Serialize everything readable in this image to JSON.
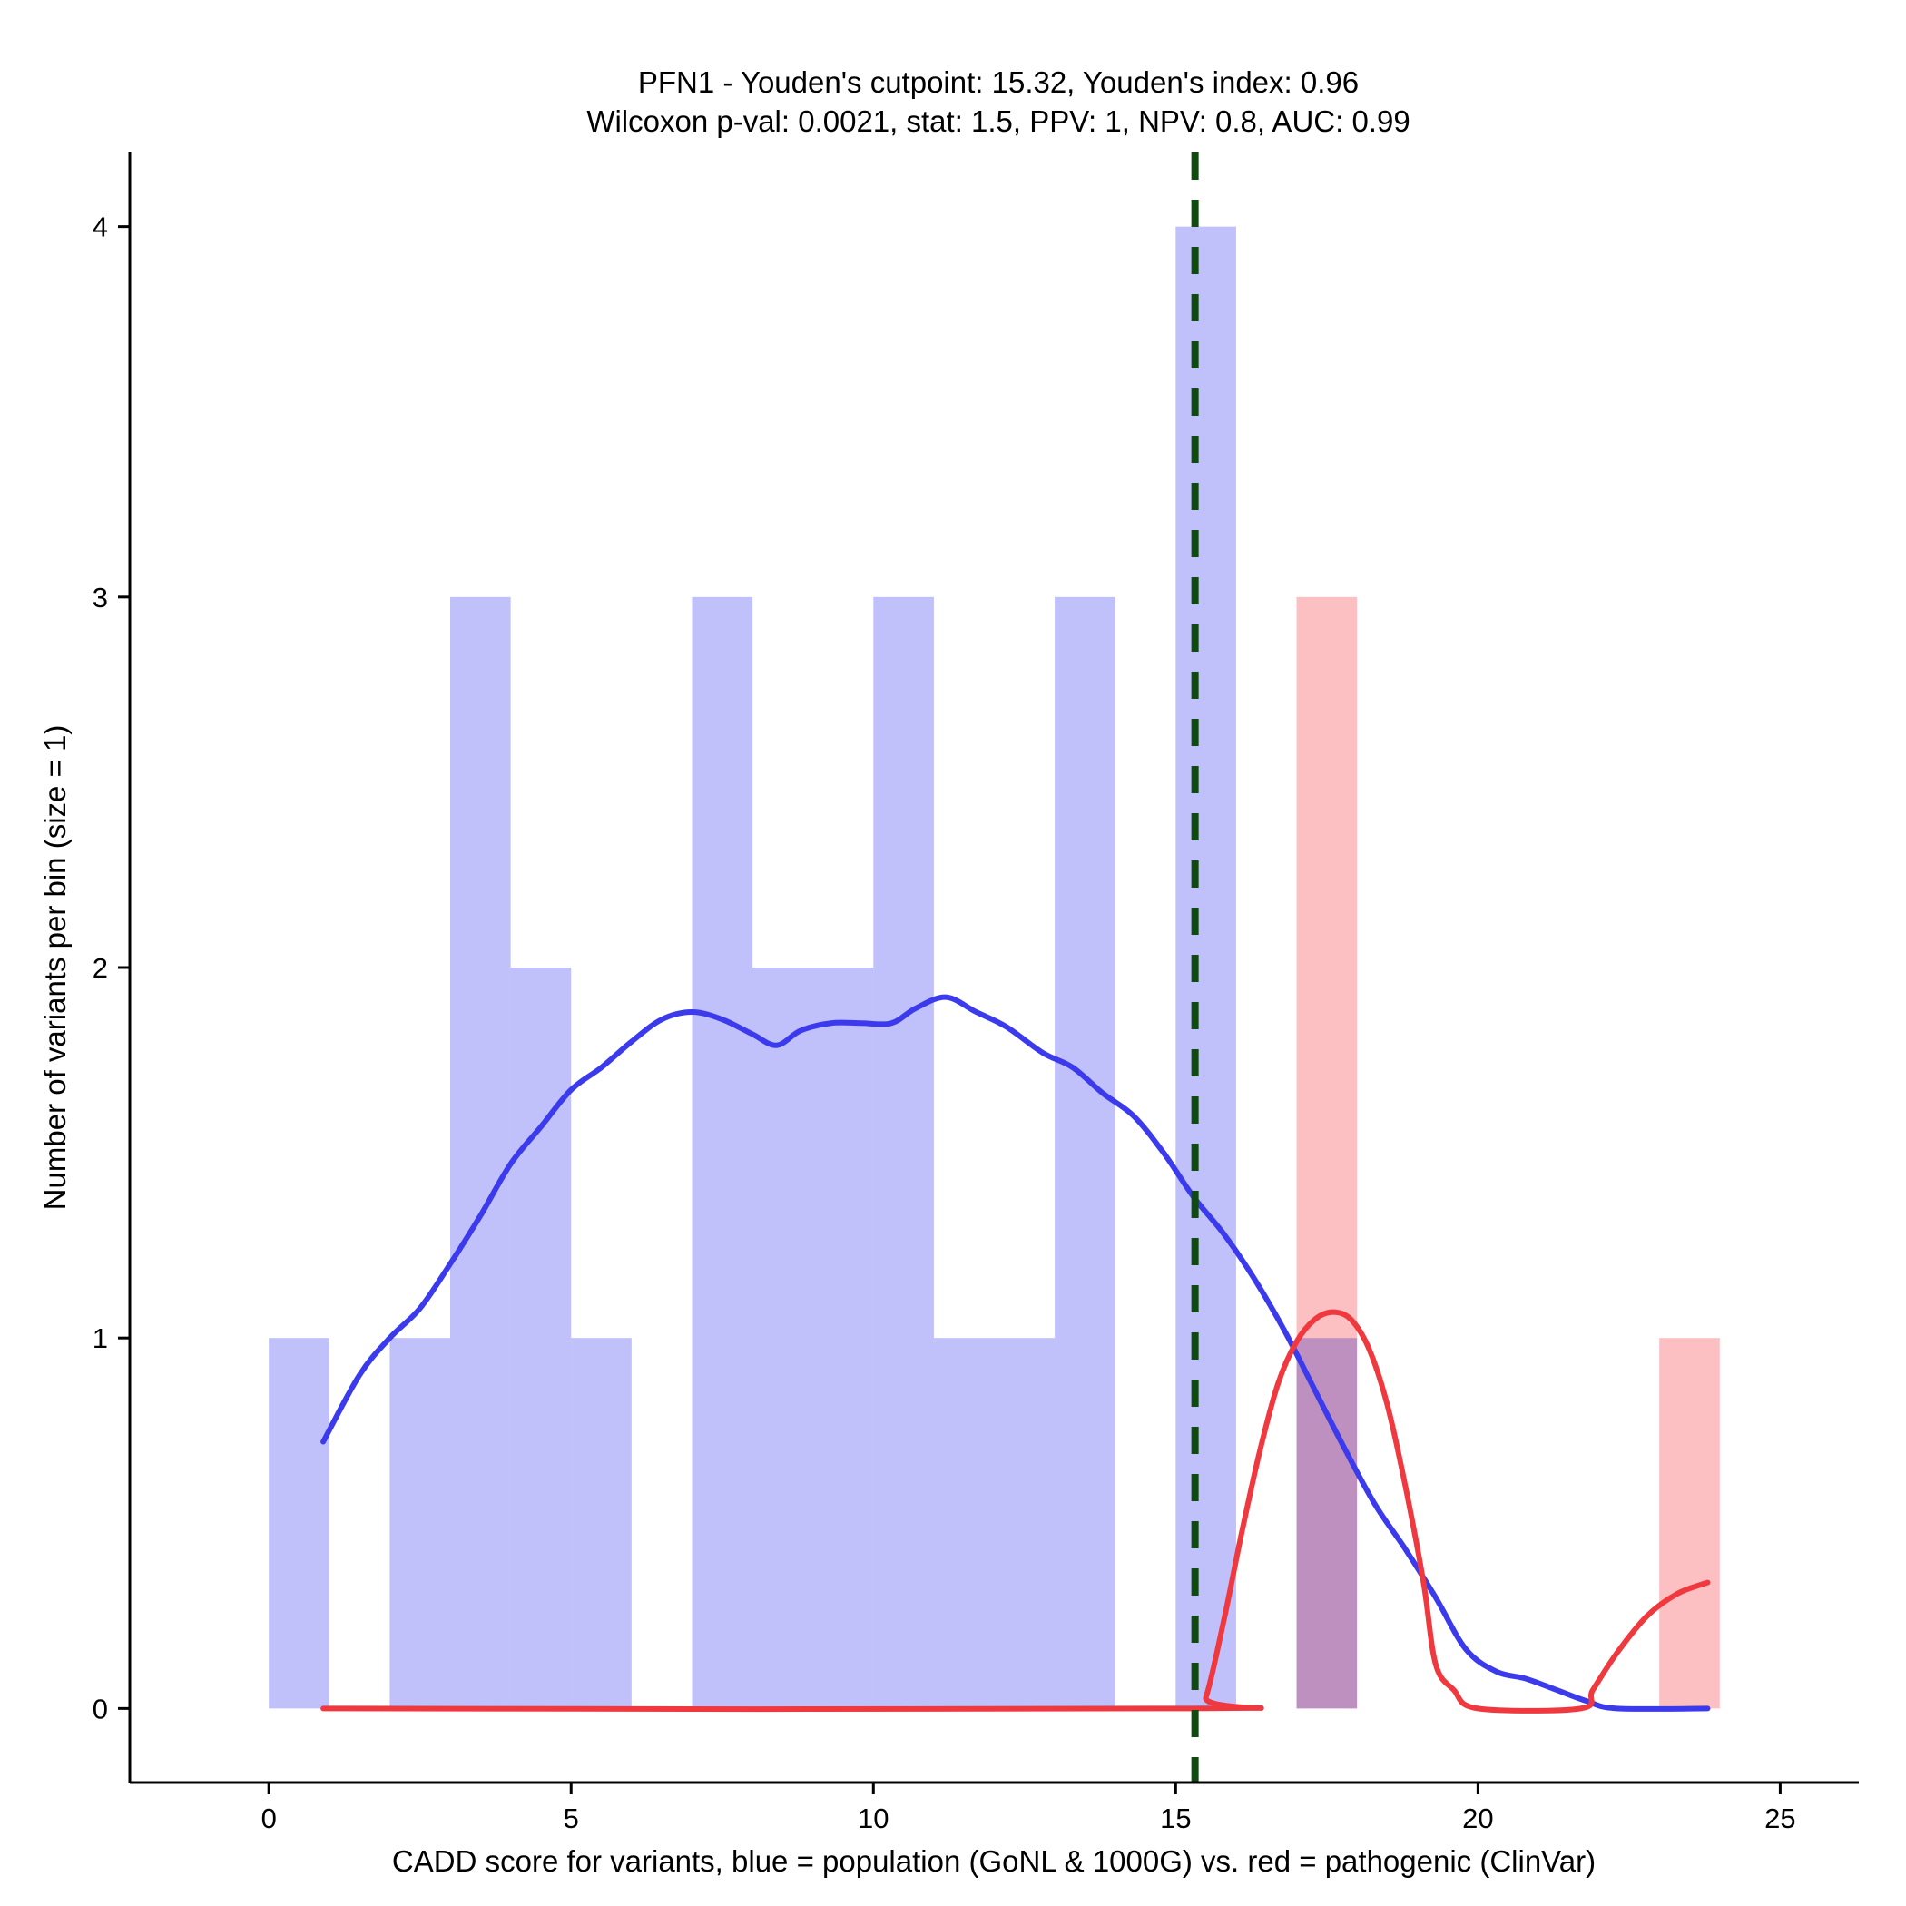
{
  "chart_data": {
    "type": "histogram",
    "title_lines": [
      "PFN1 - Youden's cutpoint: 15.32, Youden's index: 0.96",
      "Wilcoxon p-val: 0.0021, stat: 1.5, PPV: 1, NPV: 0.8, AUC: 0.99"
    ],
    "xlabel": "CADD score for variants, blue = population (GoNL & 1000G) vs. red = pathogenic (ClinVar)",
    "ylabel": "Number of variants per bin (size = 1)",
    "xlim": [
      -2.3,
      26.3
    ],
    "ylim": [
      -0.2,
      4.2
    ],
    "x_ticks": [
      0,
      5,
      10,
      15,
      20,
      25
    ],
    "y_ticks": [
      0,
      1,
      2,
      3,
      4
    ],
    "bin_size": 1,
    "cutpoint": 15.32,
    "colors": {
      "population_bar": "#c0c0fb",
      "pathogenic_bar": "#fdc0c2",
      "population_line": "#3b3bed",
      "pathogenic_line": "#f0383f",
      "cutpoint_line": "#0f4a0f"
    },
    "series": [
      {
        "name": "population (GoNL & 1000G)",
        "bins": [
          {
            "start": 0,
            "count": 1
          },
          {
            "start": 2,
            "count": 1
          },
          {
            "start": 3,
            "count": 3
          },
          {
            "start": 4,
            "count": 2
          },
          {
            "start": 5,
            "count": 1
          },
          {
            "start": 7,
            "count": 3
          },
          {
            "start": 8,
            "count": 2
          },
          {
            "start": 9,
            "count": 2
          },
          {
            "start": 10,
            "count": 3
          },
          {
            "start": 11,
            "count": 1
          },
          {
            "start": 12,
            "count": 1
          },
          {
            "start": 13,
            "count": 3
          },
          {
            "start": 15,
            "count": 4
          },
          {
            "start": 17,
            "count": 1
          }
        ],
        "density": [
          [
            0.9,
            0.72
          ],
          [
            1.5,
            0.9
          ],
          [
            2.0,
            1.0
          ],
          [
            2.5,
            1.08
          ],
          [
            3.0,
            1.2
          ],
          [
            3.5,
            1.33
          ],
          [
            4.0,
            1.47
          ],
          [
            4.5,
            1.57
          ],
          [
            5.0,
            1.67
          ],
          [
            5.5,
            1.73
          ],
          [
            6.0,
            1.8
          ],
          [
            6.5,
            1.86
          ],
          [
            7.0,
            1.88
          ],
          [
            7.5,
            1.86
          ],
          [
            8.0,
            1.82
          ],
          [
            8.4,
            1.79
          ],
          [
            8.8,
            1.83
          ],
          [
            9.3,
            1.85
          ],
          [
            9.8,
            1.85
          ],
          [
            10.3,
            1.85
          ],
          [
            10.7,
            1.89
          ],
          [
            11.2,
            1.92
          ],
          [
            11.7,
            1.88
          ],
          [
            12.2,
            1.84
          ],
          [
            12.8,
            1.77
          ],
          [
            13.3,
            1.73
          ],
          [
            13.8,
            1.66
          ],
          [
            14.3,
            1.6
          ],
          [
            14.8,
            1.5
          ],
          [
            15.3,
            1.38
          ],
          [
            15.8,
            1.28
          ],
          [
            16.3,
            1.16
          ],
          [
            16.8,
            1.02
          ],
          [
            17.3,
            0.86
          ],
          [
            17.8,
            0.7
          ],
          [
            18.3,
            0.55
          ],
          [
            18.8,
            0.43
          ],
          [
            19.3,
            0.3
          ],
          [
            19.8,
            0.16
          ],
          [
            20.3,
            0.1
          ],
          [
            20.8,
            0.08
          ],
          [
            21.3,
            0.05
          ],
          [
            21.8,
            0.02
          ],
          [
            22.3,
            0.0
          ],
          [
            23.8,
            0.0
          ]
        ]
      },
      {
        "name": "pathogenic (ClinVar)",
        "bins": [
          {
            "start": 17,
            "count": 3
          },
          {
            "start": 23,
            "count": 1
          }
        ],
        "density": [
          [
            0.9,
            0.0
          ],
          [
            15.3,
            0.0
          ],
          [
            15.5,
            0.03
          ],
          [
            15.8,
            0.24
          ],
          [
            16.1,
            0.48
          ],
          [
            16.4,
            0.7
          ],
          [
            16.7,
            0.88
          ],
          [
            17.0,
            0.99
          ],
          [
            17.3,
            1.05
          ],
          [
            17.6,
            1.07
          ],
          [
            17.9,
            1.05
          ],
          [
            18.2,
            0.97
          ],
          [
            18.5,
            0.82
          ],
          [
            18.8,
            0.6
          ],
          [
            19.1,
            0.34
          ],
          [
            19.3,
            0.12
          ],
          [
            19.6,
            0.05
          ],
          [
            20.0,
            0.0
          ],
          [
            21.7,
            0.0
          ],
          [
            21.9,
            0.05
          ],
          [
            22.3,
            0.15
          ],
          [
            22.8,
            0.25
          ],
          [
            23.3,
            0.31
          ],
          [
            23.8,
            0.34
          ]
        ]
      }
    ]
  }
}
